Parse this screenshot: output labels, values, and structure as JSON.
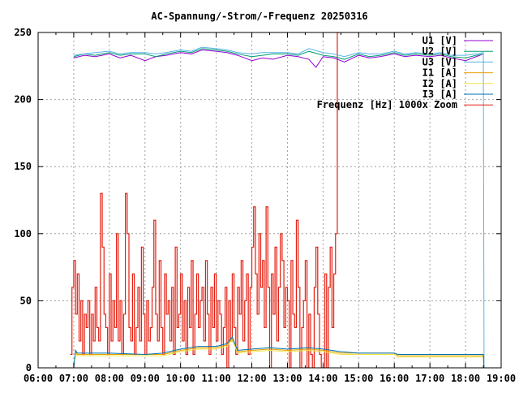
{
  "chart_data": {
    "type": "line",
    "title": "AC-Spannung/-Strom/-Frequenz 20250316",
    "xlabel": "",
    "ylabel": "",
    "xlim": [
      6,
      19
    ],
    "ylim": [
      0,
      250
    ],
    "xticks": [
      6,
      7,
      8,
      9,
      10,
      11,
      12,
      13,
      14,
      15,
      16,
      17,
      18,
      19
    ],
    "xtick_labels": [
      "06:00",
      "07:00",
      "08:00",
      "09:00",
      "10:00",
      "11:00",
      "12:00",
      "13:00",
      "14:00",
      "15:00",
      "16:00",
      "17:00",
      "18:00",
      "19:00"
    ],
    "yticks": [
      0,
      50,
      100,
      150,
      200,
      250
    ],
    "ytick_labels": [
      "0",
      "50",
      "100",
      "150",
      "200",
      "250"
    ],
    "grid": true,
    "legend_position": "top-right",
    "series": [
      {
        "name": "U1 [V]",
        "color": "#9400d3",
        "step": false,
        "x": [
          7.0,
          7.3,
          7.6,
          8.0,
          8.3,
          8.6,
          9.0,
          9.3,
          9.6,
          10.0,
          10.3,
          10.6,
          11.0,
          11.3,
          11.6,
          12.0,
          12.3,
          12.6,
          13.0,
          13.3,
          13.6,
          13.8,
          14.0,
          14.3,
          14.6,
          15.0,
          15.3,
          15.6,
          16.0,
          16.3,
          16.6,
          17.0,
          17.3,
          17.6,
          18.0,
          18.3,
          18.5
        ],
        "y": [
          231,
          233,
          232,
          234,
          231,
          233,
          229,
          232,
          233,
          235,
          234,
          237,
          236,
          235,
          233,
          229,
          231,
          230,
          233,
          232,
          230,
          224,
          232,
          231,
          228,
          233,
          231,
          232,
          234,
          232,
          233,
          232,
          233,
          231,
          229,
          232,
          234
        ]
      },
      {
        "name": "U2 [V]",
        "color": "#009e73",
        "step": false,
        "x": [
          7.0,
          7.3,
          7.6,
          8.0,
          8.3,
          8.6,
          9.0,
          9.3,
          9.6,
          10.0,
          10.3,
          10.6,
          11.0,
          11.3,
          11.6,
          12.0,
          12.3,
          12.6,
          13.0,
          13.3,
          13.6,
          14.0,
          14.3,
          14.6,
          15.0,
          15.3,
          15.6,
          16.0,
          16.3,
          16.6,
          17.0,
          17.3,
          17.6,
          18.0,
          18.3,
          18.5
        ],
        "y": [
          232,
          234,
          233,
          235,
          233,
          234,
          234,
          232,
          234,
          236,
          235,
          238,
          237,
          236,
          234,
          232,
          233,
          234,
          234,
          233,
          236,
          233,
          232,
          230,
          234,
          232,
          233,
          235,
          233,
          234,
          233,
          234,
          232,
          231,
          233,
          234
        ]
      },
      {
        "name": "U3 [V]",
        "color": "#56b4e9",
        "step": false,
        "x": [
          7.0,
          7.3,
          7.6,
          8.0,
          8.3,
          8.6,
          9.0,
          9.3,
          9.6,
          10.0,
          10.3,
          10.6,
          11.0,
          11.3,
          11.6,
          12.0,
          12.3,
          12.6,
          13.0,
          13.3,
          13.6,
          14.0,
          14.3,
          14.6,
          15.0,
          15.3,
          15.6,
          16.0,
          16.3,
          16.6,
          17.0,
          17.3,
          17.6,
          18.0,
          18.3,
          18.5,
          18.52
        ],
        "y": [
          233,
          234,
          235,
          236,
          234,
          235,
          235,
          234,
          235,
          237,
          236,
          239,
          238,
          237,
          235,
          234,
          235,
          235,
          235,
          234,
          238,
          235,
          234,
          232,
          235,
          234,
          234,
          236,
          234,
          235,
          234,
          235,
          233,
          233,
          234,
          235,
          0
        ]
      },
      {
        "name": "I1 [A]",
        "color": "#e69f00",
        "step": false,
        "x": [
          7.0,
          7.05,
          7.1,
          8.0,
          9.0,
          9.5,
          10.0,
          10.5,
          11.0,
          11.3,
          11.45,
          11.6,
          12.0,
          12.5,
          13.0,
          13.6,
          14.0,
          14.5,
          15.0,
          16.0,
          16.1,
          17.0,
          18.0,
          18.5,
          18.52
        ],
        "y": [
          0,
          12,
          10,
          10,
          10,
          10,
          13,
          15,
          15,
          17,
          22,
          12,
          13,
          14,
          13,
          14,
          13,
          11,
          11,
          11,
          9,
          9,
          9,
          9,
          0
        ]
      },
      {
        "name": "I2 [A]",
        "color": "#f0e442",
        "step": false,
        "x": [
          7.0,
          7.05,
          7.1,
          8.0,
          9.0,
          9.5,
          10.0,
          10.5,
          11.0,
          11.3,
          11.45,
          11.6,
          12.0,
          12.5,
          13.0,
          13.6,
          14.0,
          14.5,
          15.0,
          16.0,
          16.1,
          17.0,
          18.0,
          18.5,
          18.52
        ],
        "y": [
          0,
          11,
          9,
          9,
          9,
          9,
          12,
          14,
          14,
          16,
          21,
          11,
          12,
          13,
          12,
          13,
          12,
          10,
          10,
          10,
          8,
          8,
          8,
          8,
          0
        ]
      },
      {
        "name": "I3 [A]",
        "color": "#0072b2",
        "step": false,
        "x": [
          7.0,
          7.05,
          7.1,
          8.0,
          9.0,
          9.5,
          10.0,
          10.5,
          11.0,
          11.3,
          11.45,
          11.6,
          12.0,
          12.5,
          13.0,
          13.6,
          14.0,
          14.5,
          15.0,
          16.0,
          16.1,
          17.0,
          18.0,
          18.5,
          18.52
        ],
        "y": [
          0,
          13,
          11,
          11,
          10,
          11,
          14,
          16,
          16,
          18,
          23,
          13,
          14,
          15,
          14,
          15,
          14,
          12,
          11,
          11,
          10,
          10,
          10,
          10,
          0
        ]
      },
      {
        "name": "Frequenz [Hz] 1000x Zoom",
        "color": "#e51e10",
        "step": true,
        "x_start": 6.9,
        "x_step": 0.05,
        "y": [
          10,
          60,
          80,
          40,
          70,
          20,
          50,
          10,
          40,
          30,
          50,
          10,
          40,
          20,
          60,
          30,
          20,
          130,
          90,
          40,
          30,
          10,
          70,
          20,
          50,
          30,
          100,
          20,
          50,
          10,
          40,
          130,
          100,
          30,
          20,
          70,
          10,
          30,
          60,
          20,
          90,
          40,
          10,
          50,
          20,
          30,
          60,
          110,
          40,
          20,
          80,
          30,
          10,
          70,
          40,
          50,
          20,
          60,
          10,
          90,
          30,
          40,
          70,
          20,
          50,
          10,
          60,
          30,
          80,
          10,
          40,
          70,
          30,
          50,
          60,
          20,
          80,
          40,
          10,
          60,
          30,
          70,
          20,
          50,
          40,
          10,
          30,
          60,
          0,
          50,
          20,
          70,
          30,
          10,
          60,
          40,
          80,
          20,
          50,
          70,
          10,
          60,
          90,
          120,
          70,
          40,
          100,
          60,
          80,
          30,
          120,
          60,
          0,
          70,
          40,
          90,
          20,
          60,
          100,
          80,
          30,
          60,
          50,
          0,
          80,
          40,
          30,
          110,
          60,
          0,
          30,
          50,
          80,
          0,
          40,
          10,
          0,
          60,
          90,
          40,
          10,
          0,
          0,
          70,
          0,
          60,
          90,
          30,
          70,
          100,
          250
        ]
      }
    ]
  }
}
